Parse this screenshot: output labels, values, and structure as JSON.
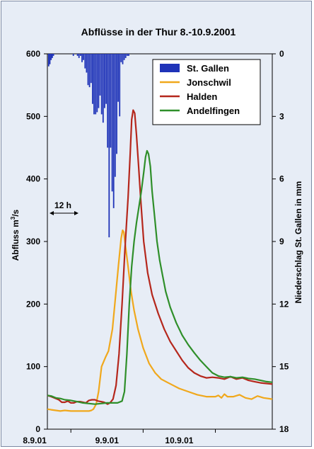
{
  "chart_data": {
    "type": "line",
    "title": "Abflüsse in der Thur  8.-10.9.2001",
    "ylabel_left_prefix": "Abfluss m",
    "ylabel_left_sup": "3",
    "ylabel_left_suffix": "/s",
    "ylabel_right": "Niederschlag St. Gallen in mm",
    "annotation": "12 h",
    "x_ticks": [
      "8.9.01",
      "9.9.01",
      "10.9.01"
    ],
    "x_tick_hours": [
      24,
      48,
      72
    ],
    "xlim_hours": [
      16.2,
      90.9
    ],
    "ylim_left": [
      0,
      600
    ],
    "y_ticks_left": [
      0,
      100,
      200,
      300,
      400,
      500,
      600
    ],
    "ylim_right_reversed": [
      0,
      18
    ],
    "y_ticks_right": [
      0,
      3,
      6,
      9,
      12,
      15,
      18
    ],
    "legend_position": "top-right",
    "colors": {
      "St. Gallen": "#1f33b8",
      "Jonschwil": "#f0a81c",
      "Halden": "#b5271c",
      "Andelfingen": "#2f8f2a",
      "background": "#e7edf6"
    },
    "rain_bar_width_hours": 0.5,
    "rain_series": {
      "name": "St. Gallen",
      "type": "bar",
      "hours": [
        16.4,
        16.8,
        17.2,
        17.6,
        18.0,
        24.6,
        26.0,
        26.5,
        27.0,
        27.5,
        28.0,
        28.5,
        29.0,
        29.5,
        30.0,
        30.5,
        31.0,
        31.5,
        32.0,
        32.5,
        33.0,
        33.5,
        34.0,
        34.5,
        35.0,
        35.5,
        36.0,
        36.5,
        37.0,
        37.5,
        38.0,
        38.5,
        39.0,
        39.5,
        40.0,
        40.5,
        41.0,
        41.5,
        42.0,
        42.5,
        43.0
      ],
      "mm": [
        0.6,
        0.5,
        0.3,
        0.2,
        0.1,
        0.1,
        0.1,
        0.2,
        0.1,
        0.4,
        0.3,
        0.7,
        0.9,
        1.5,
        1.6,
        1.4,
        2.4,
        2.9,
        2.9,
        2.8,
        2.6,
        2.0,
        2.9,
        3.3,
        2.6,
        2.4,
        4.5,
        8.8,
        4.5,
        6.6,
        7.4,
        5.9,
        4.8,
        2.3,
        3.0,
        0.4,
        0.5,
        0.3,
        0.2,
        0.1,
        0.1
      ]
    },
    "series": [
      {
        "name": "Jonschwil",
        "x_hours": [
          16.2,
          17.5,
          19,
          20.5,
          22,
          24,
          26,
          27.5,
          29,
          30,
          30.8,
          31.5,
          32.4,
          33.2,
          34.2,
          35.5,
          36.5,
          37.8,
          38.8,
          39.8,
          40.7,
          41.2,
          41.6,
          42.2,
          43,
          44,
          45,
          46.3,
          48,
          50,
          52,
          54,
          56,
          58,
          60,
          63,
          66,
          69,
          72,
          73,
          74,
          75,
          76,
          78,
          80,
          82,
          84,
          86,
          88,
          90.9
        ],
        "y": [
          32,
          31,
          30,
          29,
          30,
          29,
          29,
          29,
          29,
          29,
          30,
          32,
          40,
          60,
          100,
          115,
          125,
          160,
          210,
          262,
          305,
          318,
          315,
          290,
          260,
          220,
          190,
          160,
          130,
          105,
          90,
          80,
          75,
          70,
          65,
          60,
          55,
          52,
          52,
          54,
          50,
          56,
          52,
          52,
          55,
          50,
          48,
          53,
          50,
          48
        ]
      },
      {
        "name": "Halden",
        "x_hours": [
          16.2,
          17.5,
          19,
          20,
          21,
          22,
          23,
          24,
          25,
          26,
          27,
          28,
          29,
          30,
          31,
          32,
          33,
          34,
          35,
          35.5,
          36.2,
          37,
          38,
          39,
          40,
          41,
          42,
          43,
          43.7,
          44.2,
          44.7,
          45.2,
          45.8,
          46.5,
          47.3,
          48.2,
          49.5,
          51,
          53,
          55,
          57,
          59,
          61,
          63,
          65,
          67,
          69,
          71,
          73,
          75,
          77,
          79,
          81,
          83,
          85,
          87,
          89,
          90.9
        ],
        "y": [
          54,
          52,
          49,
          47,
          43,
          43,
          45,
          42,
          42,
          44,
          44,
          43,
          42,
          46,
          47,
          47,
          45,
          44,
          43,
          42,
          40,
          42,
          48,
          70,
          120,
          200,
          290,
          370,
          440,
          495,
          510,
          505,
          470,
          420,
          360,
          300,
          250,
          215,
          185,
          160,
          140,
          125,
          110,
          98,
          90,
          85,
          82,
          83,
          82,
          80,
          84,
          80,
          82,
          78,
          76,
          74,
          73,
          72
        ]
      },
      {
        "name": "Andelfingen",
        "x_hours": [
          16.2,
          17.5,
          19,
          20.5,
          22,
          24,
          26,
          28,
          30,
          32,
          34,
          36,
          38,
          39.5,
          41,
          41.8,
          42.6,
          43.4,
          44.2,
          45,
          45.8,
          46.6,
          47.4,
          48.2,
          48.8,
          49.3,
          49.8,
          50.4,
          51,
          51.8,
          52.6,
          53.5,
          54.5,
          55.5,
          57,
          59,
          61,
          63,
          65,
          67,
          69,
          71,
          73,
          75,
          77,
          79,
          81,
          83,
          85,
          87,
          89,
          90.9
        ],
        "y": [
          54,
          53,
          50,
          49,
          47,
          46,
          44,
          42,
          41,
          40,
          41,
          42,
          42,
          42,
          45,
          60,
          120,
          200,
          260,
          300,
          330,
          355,
          380,
          410,
          435,
          445,
          440,
          420,
          380,
          340,
          300,
          270,
          245,
          220,
          195,
          170,
          150,
          135,
          122,
          110,
          100,
          90,
          85,
          83,
          84,
          82,
          83,
          81,
          80,
          78,
          76,
          75
        ]
      }
    ]
  }
}
